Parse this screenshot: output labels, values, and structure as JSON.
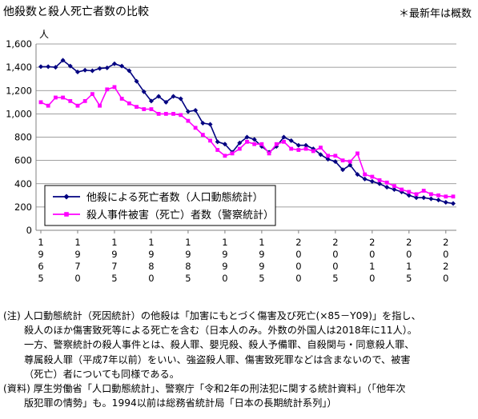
{
  "header": {
    "title": "他殺数と殺人死亡者数の比較",
    "latest_note": "＊最新年は概数"
  },
  "chart_data": {
    "type": "line",
    "x": [
      1965,
      1966,
      1967,
      1968,
      1969,
      1970,
      1971,
      1972,
      1973,
      1974,
      1975,
      1976,
      1977,
      1978,
      1979,
      1980,
      1981,
      1982,
      1983,
      1984,
      1985,
      1986,
      1987,
      1988,
      1989,
      1990,
      1991,
      1992,
      1993,
      1994,
      1995,
      1996,
      1997,
      1998,
      1999,
      2000,
      2001,
      2002,
      2003,
      2004,
      2005,
      2006,
      2007,
      2008,
      2009,
      2010,
      2011,
      2012,
      2013,
      2014,
      2015,
      2016,
      2017,
      2018,
      2019,
      2020,
      2021
    ],
    "x_tick_labels": [
      "1965",
      "1970",
      "1975",
      "1980",
      "1985",
      "1990",
      "1995",
      "2000",
      "2005",
      "2010",
      "2015",
      "2020"
    ],
    "ylabel": "人",
    "ylim": [
      0,
      1600
    ],
    "y_ticks": [
      "0",
      "200",
      "400",
      "600",
      "800",
      "1,000",
      "1,200",
      "1,400",
      "1,600"
    ],
    "grid": true,
    "legend_position": "bottom-left",
    "series": [
      {
        "name": "他殺による死亡者数（人口動態統計）",
        "color": "#000080",
        "marker": "diamond",
        "values": [
          1405,
          1405,
          1400,
          1460,
          1410,
          1360,
          1375,
          1370,
          1390,
          1395,
          1430,
          1410,
          1370,
          1280,
          1190,
          1110,
          1150,
          1100,
          1150,
          1130,
          1020,
          1030,
          920,
          910,
          760,
          740,
          670,
          750,
          800,
          780,
          720,
          670,
          720,
          800,
          770,
          730,
          730,
          700,
          650,
          610,
          590,
          520,
          560,
          480,
          440,
          420,
          400,
          370,
          350,
          330,
          300,
          280,
          280,
          270,
          260,
          240,
          230
        ]
      },
      {
        "name": "殺人事件被害（死亡）者数（警察統計）",
        "color": "#ff00ff",
        "marker": "square",
        "values": [
          1100,
          1070,
          1140,
          1140,
          1110,
          1070,
          1110,
          1170,
          1070,
          1210,
          1230,
          1130,
          1090,
          1060,
          1040,
          1040,
          1000,
          1000,
          1000,
          990,
          940,
          880,
          820,
          770,
          690,
          640,
          660,
          700,
          760,
          740,
          740,
          660,
          740,
          760,
          700,
          690,
          700,
          680,
          710,
          640,
          640,
          600,
          590,
          660,
          480,
          460,
          430,
          410,
          380,
          350,
          330,
          310,
          340,
          310,
          300,
          290,
          290
        ]
      }
    ]
  },
  "notes": {
    "line1": "(注) 人口動態統計（死因統計）の他殺は「加害にもとづく傷害及び死亡(×85－Y09)」を指し、",
    "line2": "殺人のほか傷害致死等による死亡を含む（日本人のみ。外数の外国人は2018年に11人）。",
    "line3": "一方、警察統計の殺人事件とは、殺人罪、嬰児殺、殺人予備罪、自殺関与・同意殺人罪、",
    "line4": "尊属殺人罪（平成7年以前）をいい、強盗殺人罪、傷害致死罪などは含まないので、被害",
    "line5": "（死亡）者についても同様である。",
    "line6": "(資料) 厚生労働省「人口動態統計」、警察庁「令和2年の刑法犯に関する統計資料」（「他年次",
    "line7": "版犯罪の情勢」も。1994以前は総務省統計局「日本の長期統計系列」）"
  }
}
